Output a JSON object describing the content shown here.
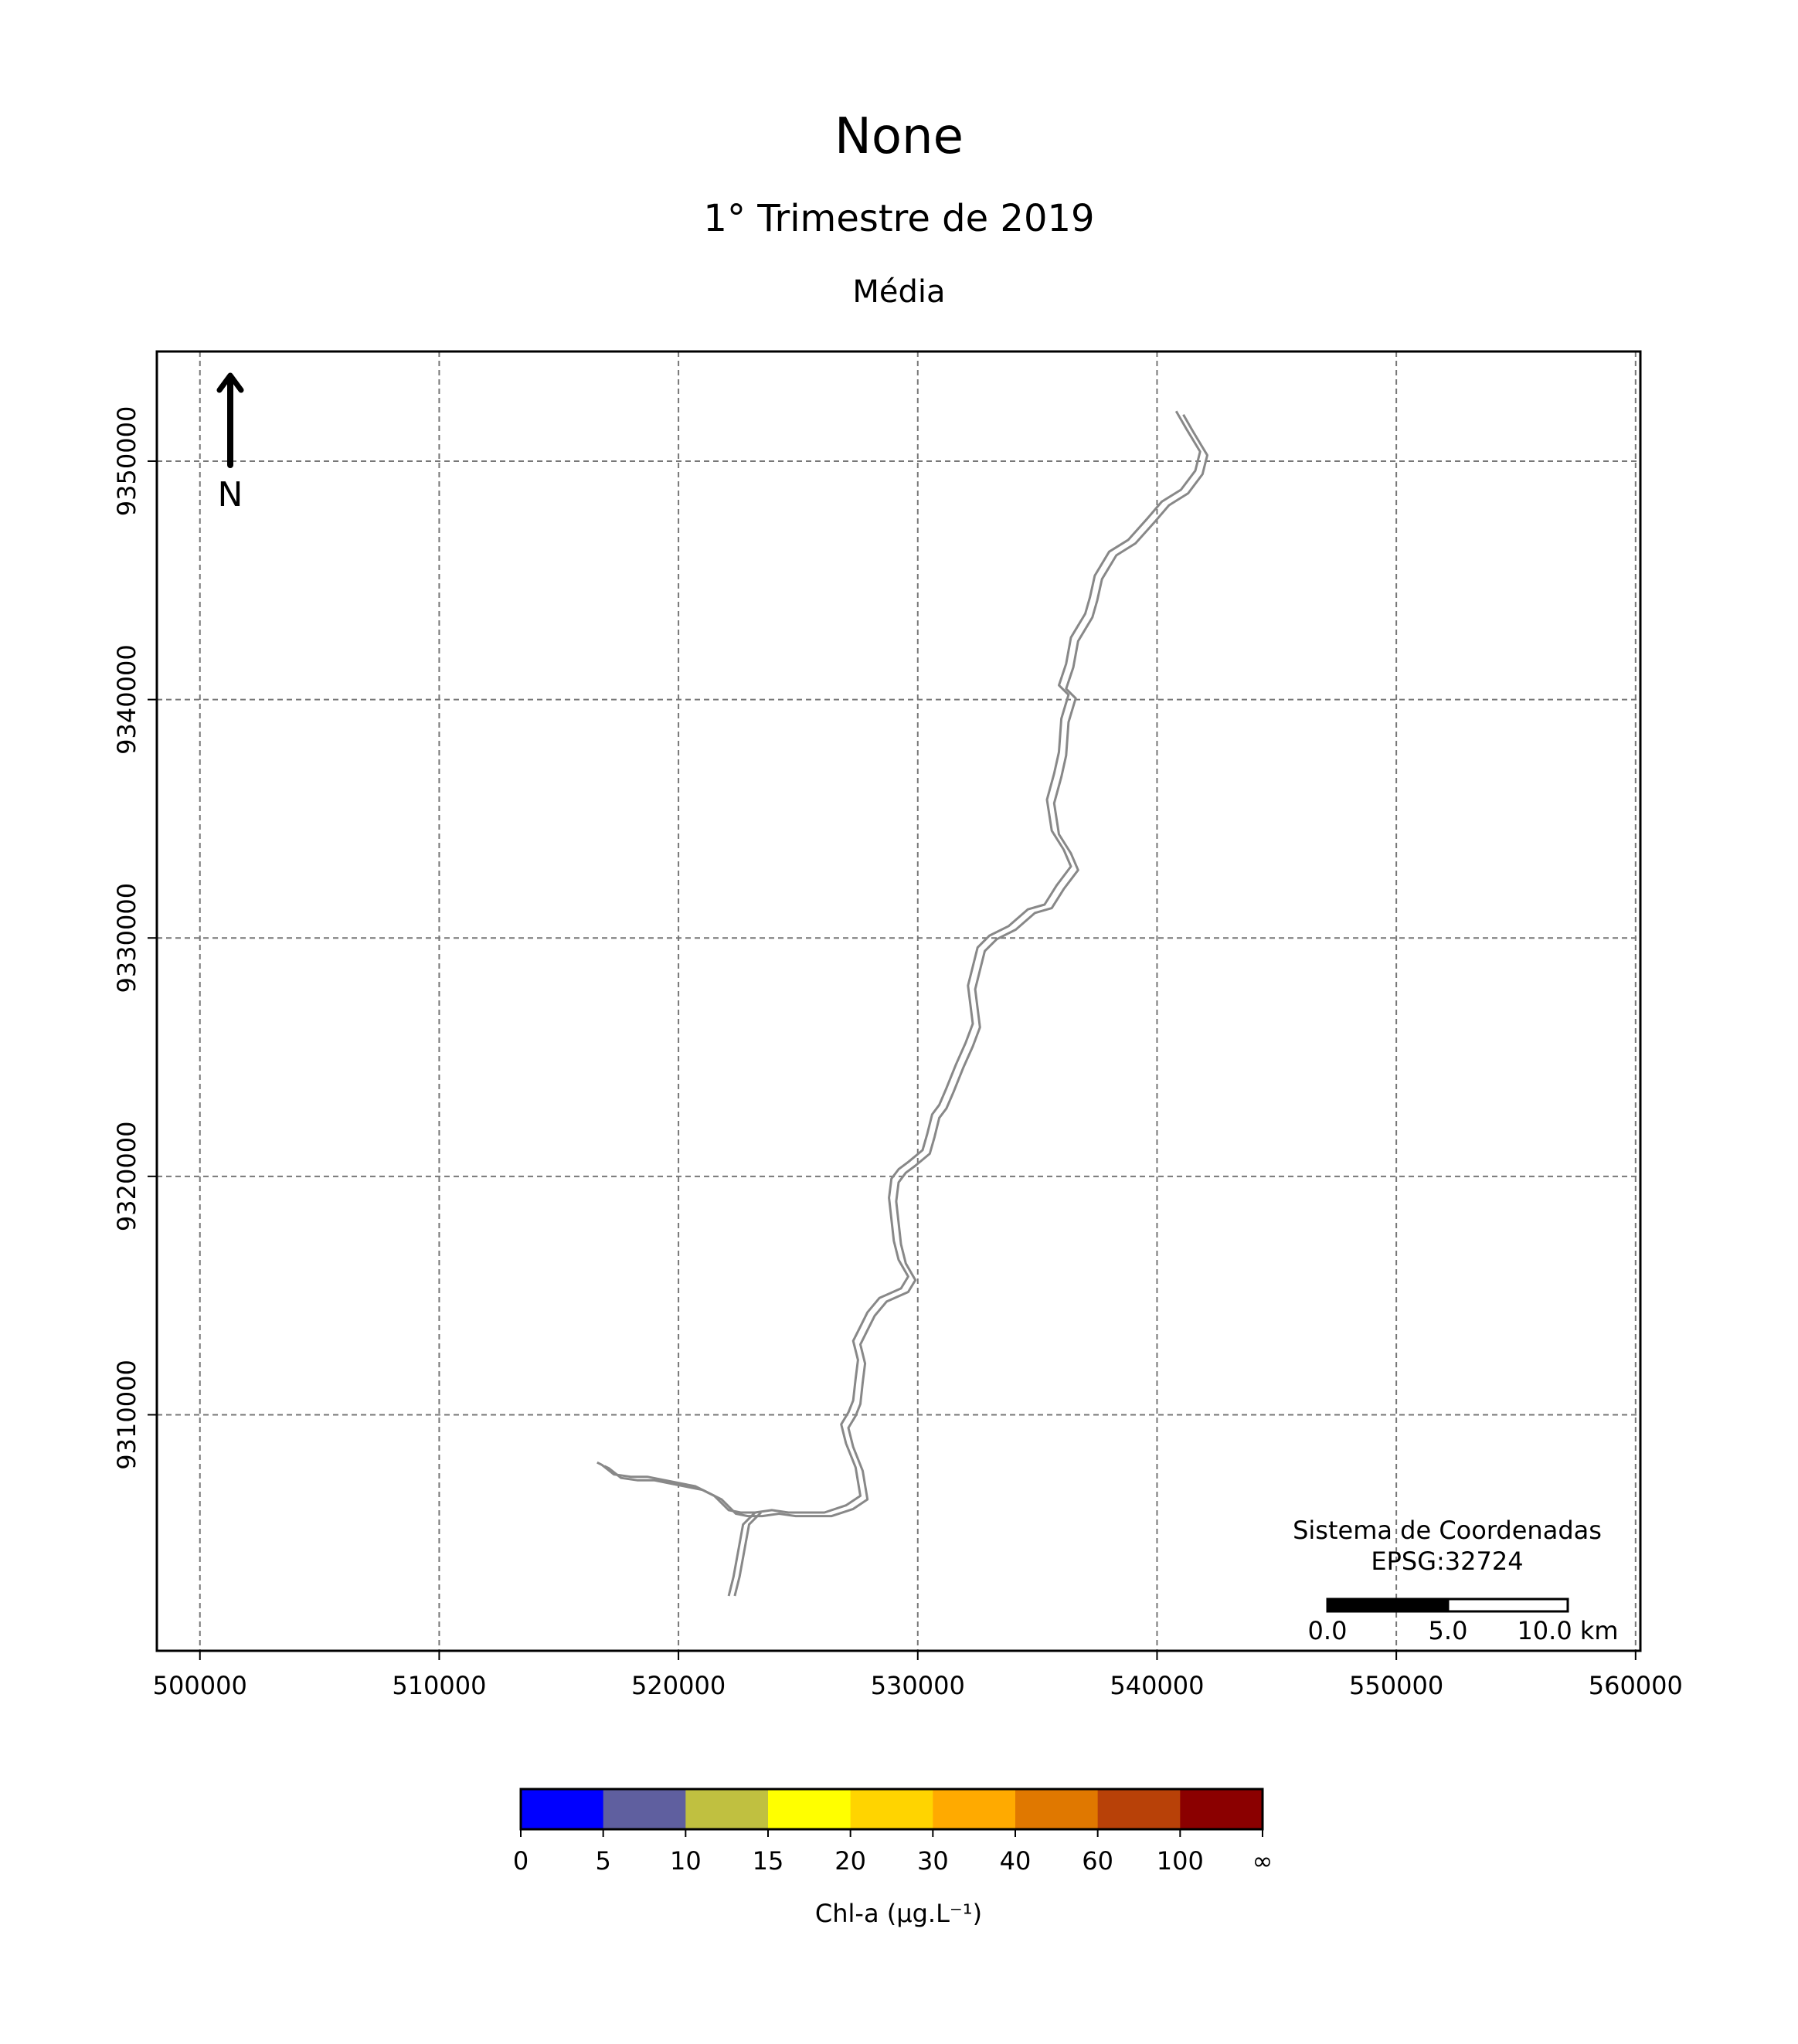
{
  "title": "None",
  "subtitle": "1° Trimestre de 2019",
  "statistic": "Média",
  "chart_data": {
    "type": "map",
    "x_ticks": [
      "500000",
      "510000",
      "520000",
      "530000",
      "540000",
      "550000",
      "560000"
    ],
    "y_ticks": [
      "9310000",
      "9320000",
      "9330000",
      "9340000",
      "9350000"
    ],
    "xlim": [
      498200,
      560200
    ],
    "ylim": [
      9300100,
      9354600
    ],
    "grid": true,
    "river_outline": [
      [
        540800,
        9352100
      ],
      [
        541200,
        9351400
      ],
      [
        541800,
        9350400
      ],
      [
        541600,
        9349600
      ],
      [
        541000,
        9348800
      ],
      [
        540200,
        9348300
      ],
      [
        539600,
        9347600
      ],
      [
        538800,
        9346700
      ],
      [
        538000,
        9346200
      ],
      [
        537400,
        9345200
      ],
      [
        537200,
        9344300
      ],
      [
        537000,
        9343600
      ],
      [
        536400,
        9342600
      ],
      [
        536200,
        9341500
      ],
      [
        535900,
        9340600
      ],
      [
        536300,
        9340200
      ],
      [
        536000,
        9339200
      ],
      [
        535900,
        9337800
      ],
      [
        535700,
        9336900
      ],
      [
        535400,
        9335800
      ],
      [
        535600,
        9334500
      ],
      [
        536100,
        9333700
      ],
      [
        536400,
        9333000
      ],
      [
        535800,
        9332200
      ],
      [
        535300,
        9331400
      ],
      [
        534600,
        9331200
      ],
      [
        533800,
        9330500
      ],
      [
        533000,
        9330100
      ],
      [
        532500,
        9329600
      ],
      [
        532300,
        9328800
      ],
      [
        532100,
        9328000
      ],
      [
        532200,
        9327200
      ],
      [
        532300,
        9326400
      ],
      [
        532000,
        9325600
      ],
      [
        531600,
        9324700
      ],
      [
        531200,
        9323700
      ],
      [
        530900,
        9323000
      ],
      [
        530600,
        9322600
      ],
      [
        530400,
        9321800
      ],
      [
        530200,
        9321100
      ],
      [
        529600,
        9320600
      ],
      [
        529200,
        9320300
      ],
      [
        528900,
        9319900
      ],
      [
        528800,
        9319100
      ],
      [
        528900,
        9318200
      ],
      [
        529000,
        9317300
      ],
      [
        529200,
        9316500
      ],
      [
        529600,
        9315800
      ],
      [
        529300,
        9315300
      ],
      [
        528400,
        9314900
      ],
      [
        527900,
        9314300
      ],
      [
        527600,
        9313700
      ],
      [
        527300,
        9313100
      ],
      [
        527500,
        9312300
      ],
      [
        527400,
        9311500
      ],
      [
        527300,
        9310600
      ],
      [
        527100,
        9310100
      ],
      [
        526800,
        9309600
      ],
      [
        527000,
        9308800
      ],
      [
        527400,
        9307800
      ],
      [
        527600,
        9306600
      ],
      [
        527000,
        9306200
      ],
      [
        526100,
        9305900
      ],
      [
        525500,
        9305900
      ],
      [
        524600,
        9305900
      ],
      [
        523900,
        9306000
      ],
      [
        523200,
        9305900
      ],
      [
        522600,
        9305900
      ],
      [
        522100,
        9306000
      ],
      [
        521500,
        9306600
      ],
      [
        520700,
        9307000
      ],
      [
        519700,
        9307200
      ],
      [
        518700,
        9307400
      ],
      [
        518000,
        9307400
      ],
      [
        517300,
        9307500
      ],
      [
        516800,
        9307900
      ],
      [
        516600,
        9308000
      ]
    ],
    "tributary": [
      [
        523200,
        9305900
      ],
      [
        522700,
        9305400
      ],
      [
        522500,
        9304300
      ],
      [
        522300,
        9303200
      ],
      [
        522100,
        9302400
      ]
    ]
  },
  "north_arrow": {
    "label": "N"
  },
  "crs": {
    "line1": "Sistema de Coordenadas",
    "line2": "EPSG:32724"
  },
  "scalebar": {
    "labels": [
      "0.0",
      "5.0",
      "10.0 km"
    ]
  },
  "colorbar": {
    "label": "Chl-a (μg.L⁻¹)",
    "ticks": [
      "0",
      "5",
      "10",
      "15",
      "20",
      "30",
      "40",
      "60",
      "100",
      "∞"
    ],
    "colors": [
      "#0000ff",
      "#5f5f9f",
      "#c0c040",
      "#ffff00",
      "#ffd400",
      "#ffaa00",
      "#e07800",
      "#b84108",
      "#8b0000"
    ]
  },
  "colors": {
    "grid": "#777777",
    "river": "#888888"
  }
}
